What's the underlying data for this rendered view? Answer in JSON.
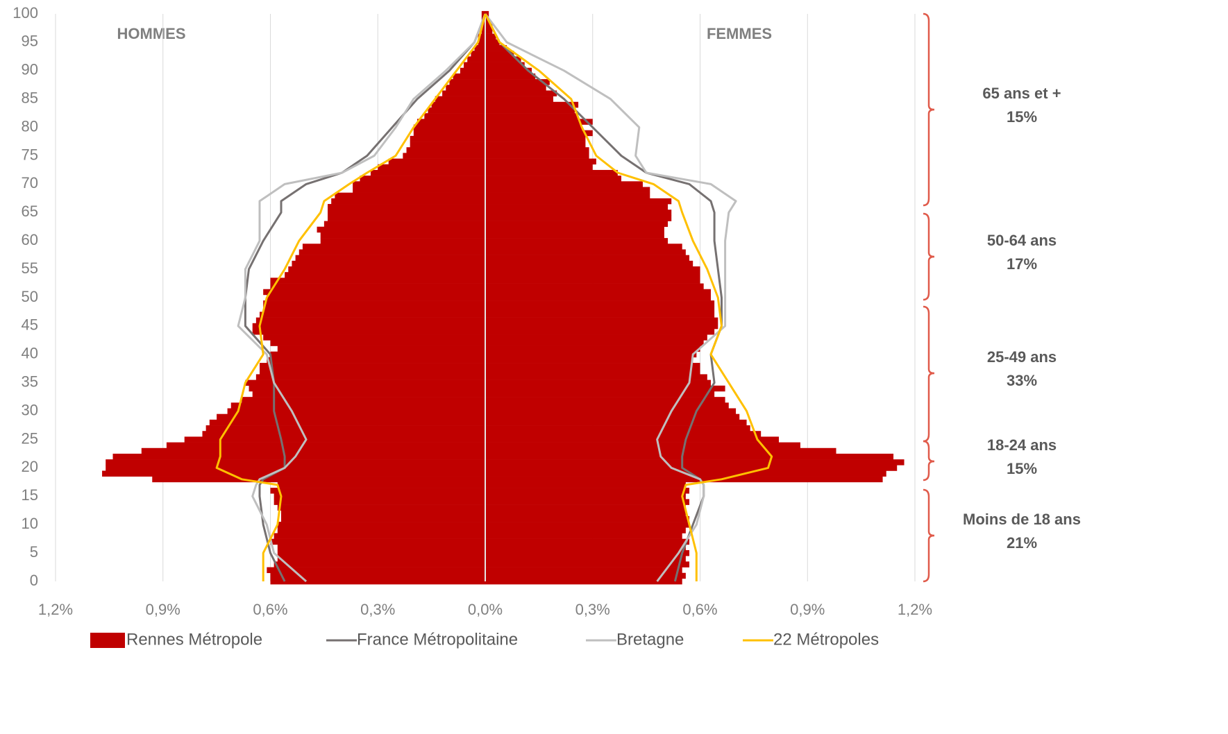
{
  "chart_data": {
    "type": "pyramid",
    "left_label": "HOMMES",
    "right_label": "FEMMES",
    "xlim": [
      -1.2,
      1.2
    ],
    "xticks": [
      {
        "value": -1.2,
        "label": "1,2%"
      },
      {
        "value": -0.9,
        "label": "0,9%"
      },
      {
        "value": -0.6,
        "label": "0,6%"
      },
      {
        "value": -0.3,
        "label": "0,3%"
      },
      {
        "value": 0,
        "label": "0,0%"
      },
      {
        "value": 0.3,
        "label": "0,3%"
      },
      {
        "value": 0.6,
        "label": "0,6%"
      },
      {
        "value": 0.9,
        "label": "0,9%"
      },
      {
        "value": 1.2,
        "label": "1,2%"
      }
    ],
    "ylim": [
      0,
      100
    ],
    "yticks": [
      0,
      5,
      10,
      15,
      20,
      25,
      30,
      35,
      40,
      45,
      50,
      55,
      60,
      65,
      70,
      75,
      80,
      85,
      90,
      95,
      100
    ],
    "grid": true,
    "series": [
      {
        "name": "Rennes Métropole",
        "color": "#c00000",
        "style": "bar",
        "ages": [
          0,
          1,
          2,
          3,
          4,
          5,
          6,
          7,
          8,
          9,
          10,
          11,
          12,
          13,
          14,
          15,
          16,
          17,
          18,
          19,
          20,
          21,
          22,
          23,
          24,
          25,
          26,
          27,
          28,
          29,
          30,
          31,
          32,
          33,
          34,
          35,
          36,
          37,
          38,
          39,
          40,
          41,
          42,
          43,
          44,
          45,
          46,
          47,
          48,
          49,
          50,
          51,
          52,
          53,
          54,
          55,
          56,
          57,
          58,
          59,
          60,
          61,
          62,
          63,
          64,
          65,
          66,
          67,
          68,
          69,
          70,
          71,
          72,
          73,
          74,
          75,
          76,
          77,
          78,
          79,
          80,
          81,
          82,
          83,
          84,
          85,
          86,
          87,
          88,
          89,
          90,
          91,
          92,
          93,
          94,
          95,
          96,
          97,
          98,
          99,
          100
        ],
        "men": [
          -0.6,
          -0.6,
          -0.61,
          -0.59,
          -0.58,
          -0.58,
          -0.58,
          -0.6,
          -0.59,
          -0.58,
          -0.58,
          -0.57,
          -0.57,
          -0.58,
          -0.59,
          -0.59,
          -0.6,
          -0.58,
          -0.93,
          -1.07,
          -1.06,
          -1.06,
          -1.04,
          -0.96,
          -0.89,
          -0.84,
          -0.79,
          -0.78,
          -0.77,
          -0.75,
          -0.72,
          -0.71,
          -0.68,
          -0.65,
          -0.66,
          -0.67,
          -0.64,
          -0.63,
          -0.63,
          -0.61,
          -0.6,
          -0.58,
          -0.6,
          -0.62,
          -0.65,
          -0.65,
          -0.64,
          -0.63,
          -0.62,
          -0.62,
          -0.61,
          -0.62,
          -0.6,
          -0.6,
          -0.56,
          -0.55,
          -0.54,
          -0.53,
          -0.52,
          -0.51,
          -0.46,
          -0.46,
          -0.47,
          -0.45,
          -0.44,
          -0.44,
          -0.44,
          -0.43,
          -0.42,
          -0.37,
          -0.37,
          -0.35,
          -0.32,
          -0.3,
          -0.27,
          -0.23,
          -0.22,
          -0.21,
          -0.21,
          -0.2,
          -0.2,
          -0.19,
          -0.17,
          -0.16,
          -0.15,
          -0.14,
          -0.12,
          -0.11,
          -0.1,
          -0.09,
          -0.07,
          -0.06,
          -0.05,
          -0.04,
          -0.03,
          -0.02,
          -0.02,
          -0.01,
          -0.01,
          -0.01,
          -0.01
        ],
        "women": [
          0.55,
          0.56,
          0.55,
          0.57,
          0.56,
          0.57,
          0.56,
          0.57,
          0.55,
          0.56,
          0.57,
          0.57,
          0.56,
          0.56,
          0.57,
          0.56,
          0.57,
          0.56,
          1.11,
          1.12,
          1.15,
          1.17,
          1.14,
          0.98,
          0.88,
          0.82,
          0.77,
          0.74,
          0.73,
          0.71,
          0.7,
          0.68,
          0.67,
          0.64,
          0.67,
          0.63,
          0.62,
          0.6,
          0.6,
          0.58,
          0.59,
          0.6,
          0.61,
          0.62,
          0.64,
          0.65,
          0.65,
          0.64,
          0.64,
          0.64,
          0.63,
          0.63,
          0.61,
          0.6,
          0.6,
          0.6,
          0.58,
          0.57,
          0.56,
          0.55,
          0.51,
          0.5,
          0.5,
          0.51,
          0.52,
          0.52,
          0.51,
          0.52,
          0.46,
          0.46,
          0.44,
          0.38,
          0.37,
          0.3,
          0.31,
          0.29,
          0.29,
          0.28,
          0.28,
          0.3,
          0.27,
          0.3,
          0.26,
          0.25,
          0.26,
          0.19,
          0.2,
          0.17,
          0.18,
          0.14,
          0.13,
          0.11,
          0.1,
          0.08,
          0.06,
          0.04,
          0.03,
          0.02,
          0.02,
          0.01,
          0.01
        ]
      },
      {
        "name": "France Métropolitaine",
        "color": "#767171",
        "style": "line",
        "ages": [
          0,
          5,
          10,
          15,
          17,
          18,
          20,
          22,
          25,
          30,
          35,
          40,
          45,
          50,
          55,
          60,
          65,
          67,
          70,
          72,
          75,
          80,
          85,
          90,
          95,
          100
        ],
        "men": [
          -0.56,
          -0.6,
          -0.62,
          -0.63,
          -0.63,
          -0.62,
          -0.56,
          -0.56,
          -0.57,
          -0.59,
          -0.59,
          -0.6,
          -0.67,
          -0.67,
          -0.66,
          -0.62,
          -0.57,
          -0.57,
          -0.5,
          -0.4,
          -0.33,
          -0.26,
          -0.19,
          -0.1,
          -0.03,
          0
        ],
        "women": [
          0.53,
          0.55,
          0.58,
          0.61,
          0.61,
          0.6,
          0.55,
          0.55,
          0.56,
          0.59,
          0.64,
          0.63,
          0.66,
          0.66,
          0.65,
          0.64,
          0.64,
          0.63,
          0.57,
          0.45,
          0.38,
          0.3,
          0.22,
          0.12,
          0.04,
          0
        ]
      },
      {
        "name": "Bretagne",
        "color": "#bfbfbf",
        "style": "line",
        "ages": [
          0,
          5,
          10,
          15,
          17,
          18,
          20,
          22,
          25,
          30,
          35,
          40,
          45,
          50,
          55,
          60,
          65,
          67,
          70,
          72,
          75,
          80,
          85,
          90,
          95,
          100
        ],
        "men": [
          -0.5,
          -0.59,
          -0.61,
          -0.65,
          -0.64,
          -0.63,
          -0.56,
          -0.53,
          -0.5,
          -0.54,
          -0.59,
          -0.61,
          -0.69,
          -0.67,
          -0.67,
          -0.63,
          -0.63,
          -0.63,
          -0.56,
          -0.4,
          -0.31,
          -0.25,
          -0.2,
          -0.11,
          -0.03,
          0
        ],
        "women": [
          0.48,
          0.54,
          0.59,
          0.61,
          0.61,
          0.6,
          0.52,
          0.49,
          0.48,
          0.52,
          0.57,
          0.58,
          0.67,
          0.67,
          0.67,
          0.67,
          0.68,
          0.7,
          0.63,
          0.45,
          0.42,
          0.43,
          0.35,
          0.22,
          0.06,
          0
        ]
      },
      {
        "name": "22 Métropoles",
        "color": "#ffc000",
        "style": "line",
        "ages": [
          0,
          5,
          10,
          15,
          17,
          18,
          20,
          22,
          25,
          30,
          35,
          40,
          45,
          50,
          55,
          60,
          65,
          67,
          70,
          72,
          75,
          80,
          85,
          90,
          95,
          100
        ],
        "men": [
          -0.62,
          -0.62,
          -0.58,
          -0.57,
          -0.58,
          -0.68,
          -0.75,
          -0.74,
          -0.74,
          -0.69,
          -0.67,
          -0.62,
          -0.63,
          -0.61,
          -0.56,
          -0.52,
          -0.46,
          -0.45,
          -0.38,
          -0.33,
          -0.25,
          -0.2,
          -0.14,
          -0.08,
          -0.02,
          0
        ],
        "women": [
          0.59,
          0.59,
          0.57,
          0.55,
          0.56,
          0.66,
          0.79,
          0.8,
          0.76,
          0.73,
          0.68,
          0.63,
          0.66,
          0.65,
          0.62,
          0.58,
          0.55,
          0.54,
          0.47,
          0.37,
          0.31,
          0.27,
          0.24,
          0.15,
          0.04,
          0
        ]
      }
    ],
    "annotations": [
      {
        "label": "65 ans et +",
        "share": "15%"
      },
      {
        "label": "50-64 ans",
        "share": "17%"
      },
      {
        "label": "25-49 ans",
        "share": "33%"
      },
      {
        "label": "18-24 ans",
        "share": "15%"
      },
      {
        "label": "Moins de 18 ans",
        "share": "21%"
      }
    ]
  }
}
